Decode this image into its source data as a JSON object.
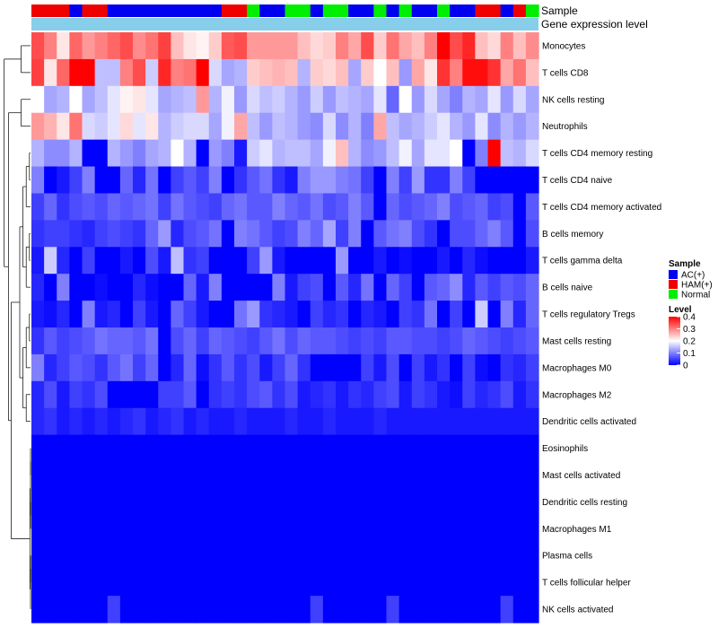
{
  "chart_data": {
    "type": "heatmap",
    "title": "",
    "annotation_labels": [
      "Sample",
      "Gene expression level"
    ],
    "columns": 40,
    "sample_groups": [
      "HAM",
      "HAM",
      "HAM",
      "AC",
      "HAM",
      "HAM",
      "AC",
      "AC",
      "AC",
      "AC",
      "AC",
      "AC",
      "AC",
      "AC",
      "AC",
      "HAM",
      "HAM",
      "Normal",
      "AC",
      "AC",
      "Normal",
      "Normal",
      "AC",
      "Normal",
      "Normal",
      "AC",
      "AC",
      "Normal",
      "AC",
      "Normal",
      "AC",
      "AC",
      "Normal",
      "AC",
      "AC",
      "HAM",
      "HAM",
      "AC",
      "HAM",
      "Normal"
    ],
    "rows": [
      "Monocytes",
      "T cells CD8",
      "NK cells resting",
      "Neutrophils",
      "T cells CD4 memory resting",
      "T cells CD4 naive",
      "T cells CD4 memory activated",
      "B cells memory",
      "T cells gamma delta",
      "B cells naive",
      "T cells regulatory  Tregs",
      "Mast cells resting",
      "Macrophages M0",
      "Macrophages M2",
      "Dendritic cells activated",
      "Eosinophils",
      "Mast cells activated",
      "Dendritic cells resting",
      "Macrophages M1",
      "Plasma cells",
      "T cells follicular helper",
      "NK cells activated"
    ],
    "values": [
      [
        0.34,
        0.3,
        0.22,
        0.32,
        0.28,
        0.3,
        0.32,
        0.34,
        0.29,
        0.31,
        0.35,
        0.25,
        0.22,
        0.21,
        0.24,
        0.33,
        0.34,
        0.28,
        0.28,
        0.28,
        0.28,
        0.25,
        0.23,
        0.24,
        0.3,
        0.27,
        0.34,
        0.24,
        0.31,
        0.27,
        0.25,
        0.3,
        0.4,
        0.34,
        0.37,
        0.25,
        0.23,
        0.3,
        0.25,
        0.29
      ],
      [
        0.35,
        0.22,
        0.32,
        0.4,
        0.41,
        0.15,
        0.15,
        0.3,
        0.34,
        0.16,
        0.37,
        0.3,
        0.31,
        0.42,
        0.17,
        0.13,
        0.14,
        0.24,
        0.25,
        0.26,
        0.25,
        0.14,
        0.24,
        0.23,
        0.25,
        0.13,
        0.24,
        0.2,
        0.25,
        0.12,
        0.27,
        0.22,
        0.36,
        0.3,
        0.39,
        0.39,
        0.36,
        0.27,
        0.31,
        0.25
      ],
      [
        0.2,
        0.13,
        0.14,
        0.2,
        0.13,
        0.15,
        0.18,
        0.21,
        0.22,
        0.18,
        0.13,
        0.14,
        0.15,
        0.28,
        0.14,
        0.19,
        0.12,
        0.17,
        0.15,
        0.16,
        0.14,
        0.12,
        0.16,
        0.12,
        0.15,
        0.14,
        0.13,
        0.18,
        0.08,
        0.2,
        0.12,
        0.17,
        0.13,
        0.1,
        0.14,
        0.13,
        0.18,
        0.12,
        0.17,
        0.13
      ],
      [
        0.28,
        0.26,
        0.22,
        0.31,
        0.17,
        0.16,
        0.18,
        0.23,
        0.18,
        0.22,
        0.14,
        0.16,
        0.17,
        0.17,
        0.13,
        0.19,
        0.27,
        0.15,
        0.12,
        0.15,
        0.14,
        0.12,
        0.11,
        0.17,
        0.11,
        0.14,
        0.1,
        0.27,
        0.15,
        0.13,
        0.14,
        0.16,
        0.18,
        0.14,
        0.12,
        0.18,
        0.11,
        0.14,
        0.12,
        0.14
      ],
      [
        0.14,
        0.11,
        0.11,
        0.14,
        0.0,
        0.0,
        0.14,
        0.12,
        0.1,
        0.13,
        0.14,
        0.2,
        0.14,
        0.0,
        0.12,
        0.1,
        0.02,
        0.16,
        0.18,
        0.14,
        0.15,
        0.15,
        0.13,
        0.19,
        0.25,
        0.14,
        0.11,
        0.12,
        0.15,
        0.19,
        0.13,
        0.18,
        0.18,
        0.2,
        0.0,
        0.1,
        0.4,
        0.15,
        0.14,
        0.17
      ],
      [
        0.1,
        0.0,
        0.02,
        0.05,
        0.1,
        0.0,
        0.0,
        0.08,
        0.03,
        0.09,
        0.0,
        0.05,
        0.07,
        0.05,
        0.1,
        0.0,
        0.04,
        0.07,
        0.09,
        0.04,
        0.02,
        0.1,
        0.12,
        0.12,
        0.1,
        0.09,
        0.05,
        0.0,
        0.1,
        0.05,
        0.12,
        0.04,
        0.04,
        0.1,
        0.05,
        0.0,
        0.0,
        0.0,
        0.0,
        0.0
      ],
      [
        0.05,
        0.08,
        0.04,
        0.06,
        0.07,
        0.06,
        0.08,
        0.07,
        0.08,
        0.09,
        0.05,
        0.09,
        0.07,
        0.06,
        0.05,
        0.08,
        0.09,
        0.07,
        0.07,
        0.1,
        0.08,
        0.07,
        0.09,
        0.06,
        0.07,
        0.1,
        0.07,
        0.0,
        0.08,
        0.06,
        0.07,
        0.08,
        0.1,
        0.06,
        0.07,
        0.08,
        0.05,
        0.06,
        0.0,
        0.07
      ],
      [
        0.04,
        0.05,
        0.05,
        0.04,
        0.03,
        0.05,
        0.06,
        0.05,
        0.04,
        0.08,
        0.12,
        0.03,
        0.06,
        0.07,
        0.09,
        0.0,
        0.1,
        0.09,
        0.07,
        0.05,
        0.06,
        0.1,
        0.08,
        0.13,
        0.05,
        0.1,
        0.0,
        0.07,
        0.09,
        0.1,
        0.06,
        0.04,
        0.0,
        0.06,
        0.06,
        0.08,
        0.1,
        0.07,
        0.0,
        0.06
      ],
      [
        0.02,
        0.16,
        0.03,
        0.0,
        0.05,
        0.0,
        0.0,
        0.02,
        0.0,
        0.06,
        0.02,
        0.15,
        0.04,
        0.05,
        0.0,
        0.0,
        0.0,
        0.05,
        0.12,
        0.02,
        0.0,
        0.0,
        0.0,
        0.0,
        0.12,
        0.0,
        0.0,
        0.02,
        0.0,
        0.01,
        0.0,
        0.0,
        0.02,
        0.0,
        0.03,
        0.01,
        0.0,
        0.0,
        0.0,
        0.02
      ],
      [
        0.03,
        0.0,
        0.1,
        0.0,
        0.0,
        0.01,
        0.0,
        0.0,
        0.03,
        0.01,
        0.0,
        0.0,
        0.08,
        0.02,
        0.1,
        0.0,
        0.0,
        0.0,
        0.0,
        0.1,
        0.02,
        0.05,
        0.06,
        0.0,
        0.07,
        0.03,
        0.09,
        0.0,
        0.08,
        0.05,
        0.0,
        0.07,
        0.08,
        0.11,
        0.03,
        0.07,
        0.05,
        0.07,
        0.06,
        0.08
      ],
      [
        0.02,
        0.01,
        0.03,
        0.0,
        0.1,
        0.02,
        0.03,
        0.0,
        0.05,
        0.02,
        0.0,
        0.08,
        0.05,
        0.02,
        0.0,
        0.0,
        0.09,
        0.12,
        0.04,
        0.03,
        0.02,
        0.0,
        0.05,
        0.03,
        0.04,
        0.0,
        0.03,
        0.02,
        0.0,
        0.05,
        0.04,
        0.09,
        0.0,
        0.05,
        0.0,
        0.16,
        0.0,
        0.1,
        0.03,
        0.08
      ],
      [
        0.04,
        0.07,
        0.05,
        0.06,
        0.07,
        0.09,
        0.08,
        0.08,
        0.07,
        0.09,
        0.0,
        0.06,
        0.08,
        0.05,
        0.08,
        0.07,
        0.06,
        0.05,
        0.07,
        0.09,
        0.06,
        0.08,
        0.07,
        0.07,
        0.06,
        0.05,
        0.06,
        0.05,
        0.07,
        0.07,
        0.06,
        0.06,
        0.05,
        0.06,
        0.08,
        0.07,
        0.06,
        0.05,
        0.06,
        0.07
      ],
      [
        0.1,
        0.03,
        0.05,
        0.07,
        0.06,
        0.04,
        0.07,
        0.09,
        0.05,
        0.08,
        0.0,
        0.03,
        0.08,
        0.01,
        0.04,
        0.07,
        0.04,
        0.06,
        0.02,
        0.05,
        0.08,
        0.04,
        0.0,
        0.0,
        0.0,
        0.0,
        0.05,
        0.02,
        0.06,
        0.0,
        0.05,
        0.02,
        0.04,
        0.0,
        0.05,
        0.01,
        0.0,
        0.04,
        0.03,
        0.05
      ],
      [
        0.03,
        0.06,
        0.02,
        0.05,
        0.04,
        0.06,
        0.0,
        0.0,
        0.0,
        0.0,
        0.05,
        0.05,
        0.07,
        0.0,
        0.04,
        0.05,
        0.04,
        0.06,
        0.07,
        0.04,
        0.06,
        0.02,
        0.03,
        0.04,
        0.02,
        0.04,
        0.03,
        0.05,
        0.06,
        0.02,
        0.05,
        0.04,
        0.02,
        0.01,
        0.05,
        0.03,
        0.04,
        0.06,
        0.02,
        0.04
      ],
      [
        0.03,
        0.04,
        0.02,
        0.03,
        0.02,
        0.03,
        0.02,
        0.03,
        0.04,
        0.02,
        0.03,
        0.04,
        0.02,
        0.03,
        0.02,
        0.02,
        0.03,
        0.02,
        0.02,
        0.02,
        0.03,
        0.02,
        0.02,
        0.03,
        0.02,
        0.02,
        0.02,
        0.03,
        0.02,
        0.02,
        0.02,
        0.02,
        0.02,
        0.02,
        0.02,
        0.02,
        0.02,
        0.02,
        0.02,
        0.02
      ],
      [
        0,
        0,
        0,
        0,
        0,
        0,
        0,
        0,
        0,
        0,
        0,
        0,
        0,
        0,
        0,
        0,
        0,
        0,
        0,
        0,
        0,
        0,
        0,
        0,
        0,
        0,
        0,
        0,
        0,
        0,
        0,
        0,
        0,
        0,
        0,
        0,
        0,
        0,
        0,
        0
      ],
      [
        0,
        0,
        0,
        0,
        0,
        0,
        0,
        0,
        0,
        0,
        0,
        0,
        0,
        0,
        0,
        0,
        0,
        0,
        0,
        0,
        0,
        0,
        0,
        0,
        0,
        0,
        0,
        0,
        0,
        0,
        0,
        0,
        0,
        0,
        0,
        0,
        0,
        0,
        0,
        0
      ],
      [
        0,
        0,
        0,
        0,
        0,
        0,
        0,
        0,
        0,
        0,
        0,
        0,
        0,
        0,
        0,
        0,
        0,
        0,
        0,
        0,
        0,
        0,
        0,
        0,
        0,
        0,
        0,
        0,
        0,
        0,
        0,
        0,
        0,
        0,
        0,
        0,
        0,
        0,
        0,
        0
      ],
      [
        0,
        0,
        0,
        0,
        0,
        0,
        0,
        0,
        0,
        0,
        0,
        0,
        0,
        0,
        0,
        0,
        0,
        0,
        0,
        0,
        0,
        0,
        0,
        0,
        0,
        0,
        0,
        0,
        0,
        0,
        0,
        0,
        0,
        0,
        0,
        0,
        0,
        0,
        0,
        0
      ],
      [
        0,
        0,
        0,
        0,
        0,
        0,
        0,
        0,
        0,
        0,
        0,
        0,
        0,
        0,
        0,
        0,
        0,
        0,
        0,
        0,
        0,
        0,
        0,
        0,
        0,
        0,
        0,
        0,
        0,
        0,
        0,
        0,
        0,
        0,
        0,
        0,
        0,
        0,
        0,
        0
      ],
      [
        0,
        0,
        0,
        0,
        0,
        0,
        0,
        0,
        0,
        0,
        0,
        0,
        0,
        0,
        0,
        0,
        0,
        0,
        0,
        0,
        0,
        0,
        0,
        0,
        0,
        0,
        0,
        0,
        0,
        0,
        0,
        0,
        0,
        0,
        0,
        0,
        0,
        0,
        0,
        0
      ],
      [
        0,
        0,
        0,
        0,
        0,
        0,
        0.05,
        0,
        0,
        0,
        0,
        0,
        0,
        0,
        0,
        0,
        0,
        0,
        0,
        0,
        0,
        0,
        0.05,
        0,
        0,
        0,
        0,
        0,
        0.05,
        0,
        0,
        0,
        0,
        0,
        0,
        0,
        0,
        0.05,
        0,
        0
      ]
    ],
    "legend": {
      "sample": {
        "title": "Sample",
        "entries": [
          {
            "label": "AC(+)",
            "key": "AC",
            "color": "#0000ee"
          },
          {
            "label": "HAM(+)",
            "key": "HAM",
            "color": "#ee0000"
          },
          {
            "label": "Normal",
            "key": "Normal",
            "color": "#00ee00"
          }
        ]
      },
      "level": {
        "title": "Level",
        "range": [
          0,
          0.4
        ],
        "ticks": [
          {
            "value": 0.4,
            "label": "0.4"
          },
          {
            "value": 0.3,
            "label": "0.3"
          },
          {
            "value": 0.2,
            "label": "0.2"
          },
          {
            "value": 0.1,
            "label": "0.1"
          },
          {
            "value": 0,
            "label": "0"
          }
        ]
      }
    },
    "colors": {
      "low": "#0000ff",
      "mid": "#ffffff",
      "high": "#ff0000",
      "gene_expression_bar": "#87ceeb",
      "dendrogram": "#000000"
    },
    "color_midpoint": 0.2
  }
}
